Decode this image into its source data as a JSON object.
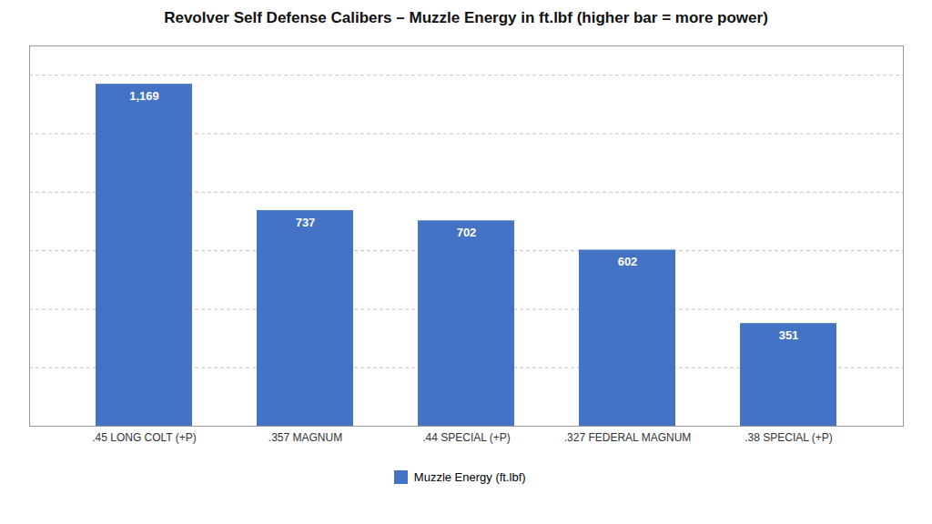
{
  "chart_data": {
    "type": "bar",
    "title": "Revolver Self Defense Calibers – Muzzle Energy in ft.lbf (higher bar = more power)",
    "categories": [
      ".45 LONG COLT (+P)",
      ".357 MAGNUM",
      ".44 SPECIAL (+P)",
      ".327 FEDERAL MAGNUM",
      ".38 SPECIAL (+P)"
    ],
    "series": [
      {
        "name": "Muzzle Energy (ft.lbf)",
        "color": "#4472C4",
        "values": [
          1169,
          737,
          702,
          602,
          351
        ],
        "value_labels": [
          "1,169",
          "737",
          "702",
          "602",
          "351"
        ]
      }
    ],
    "ylim": [
      0,
      1300
    ],
    "yticks": [
      0,
      200,
      400,
      600,
      800,
      1000,
      1200
    ],
    "grid": true,
    "tick_labels": "x",
    "data_labels": true,
    "legend": "bottom"
  }
}
